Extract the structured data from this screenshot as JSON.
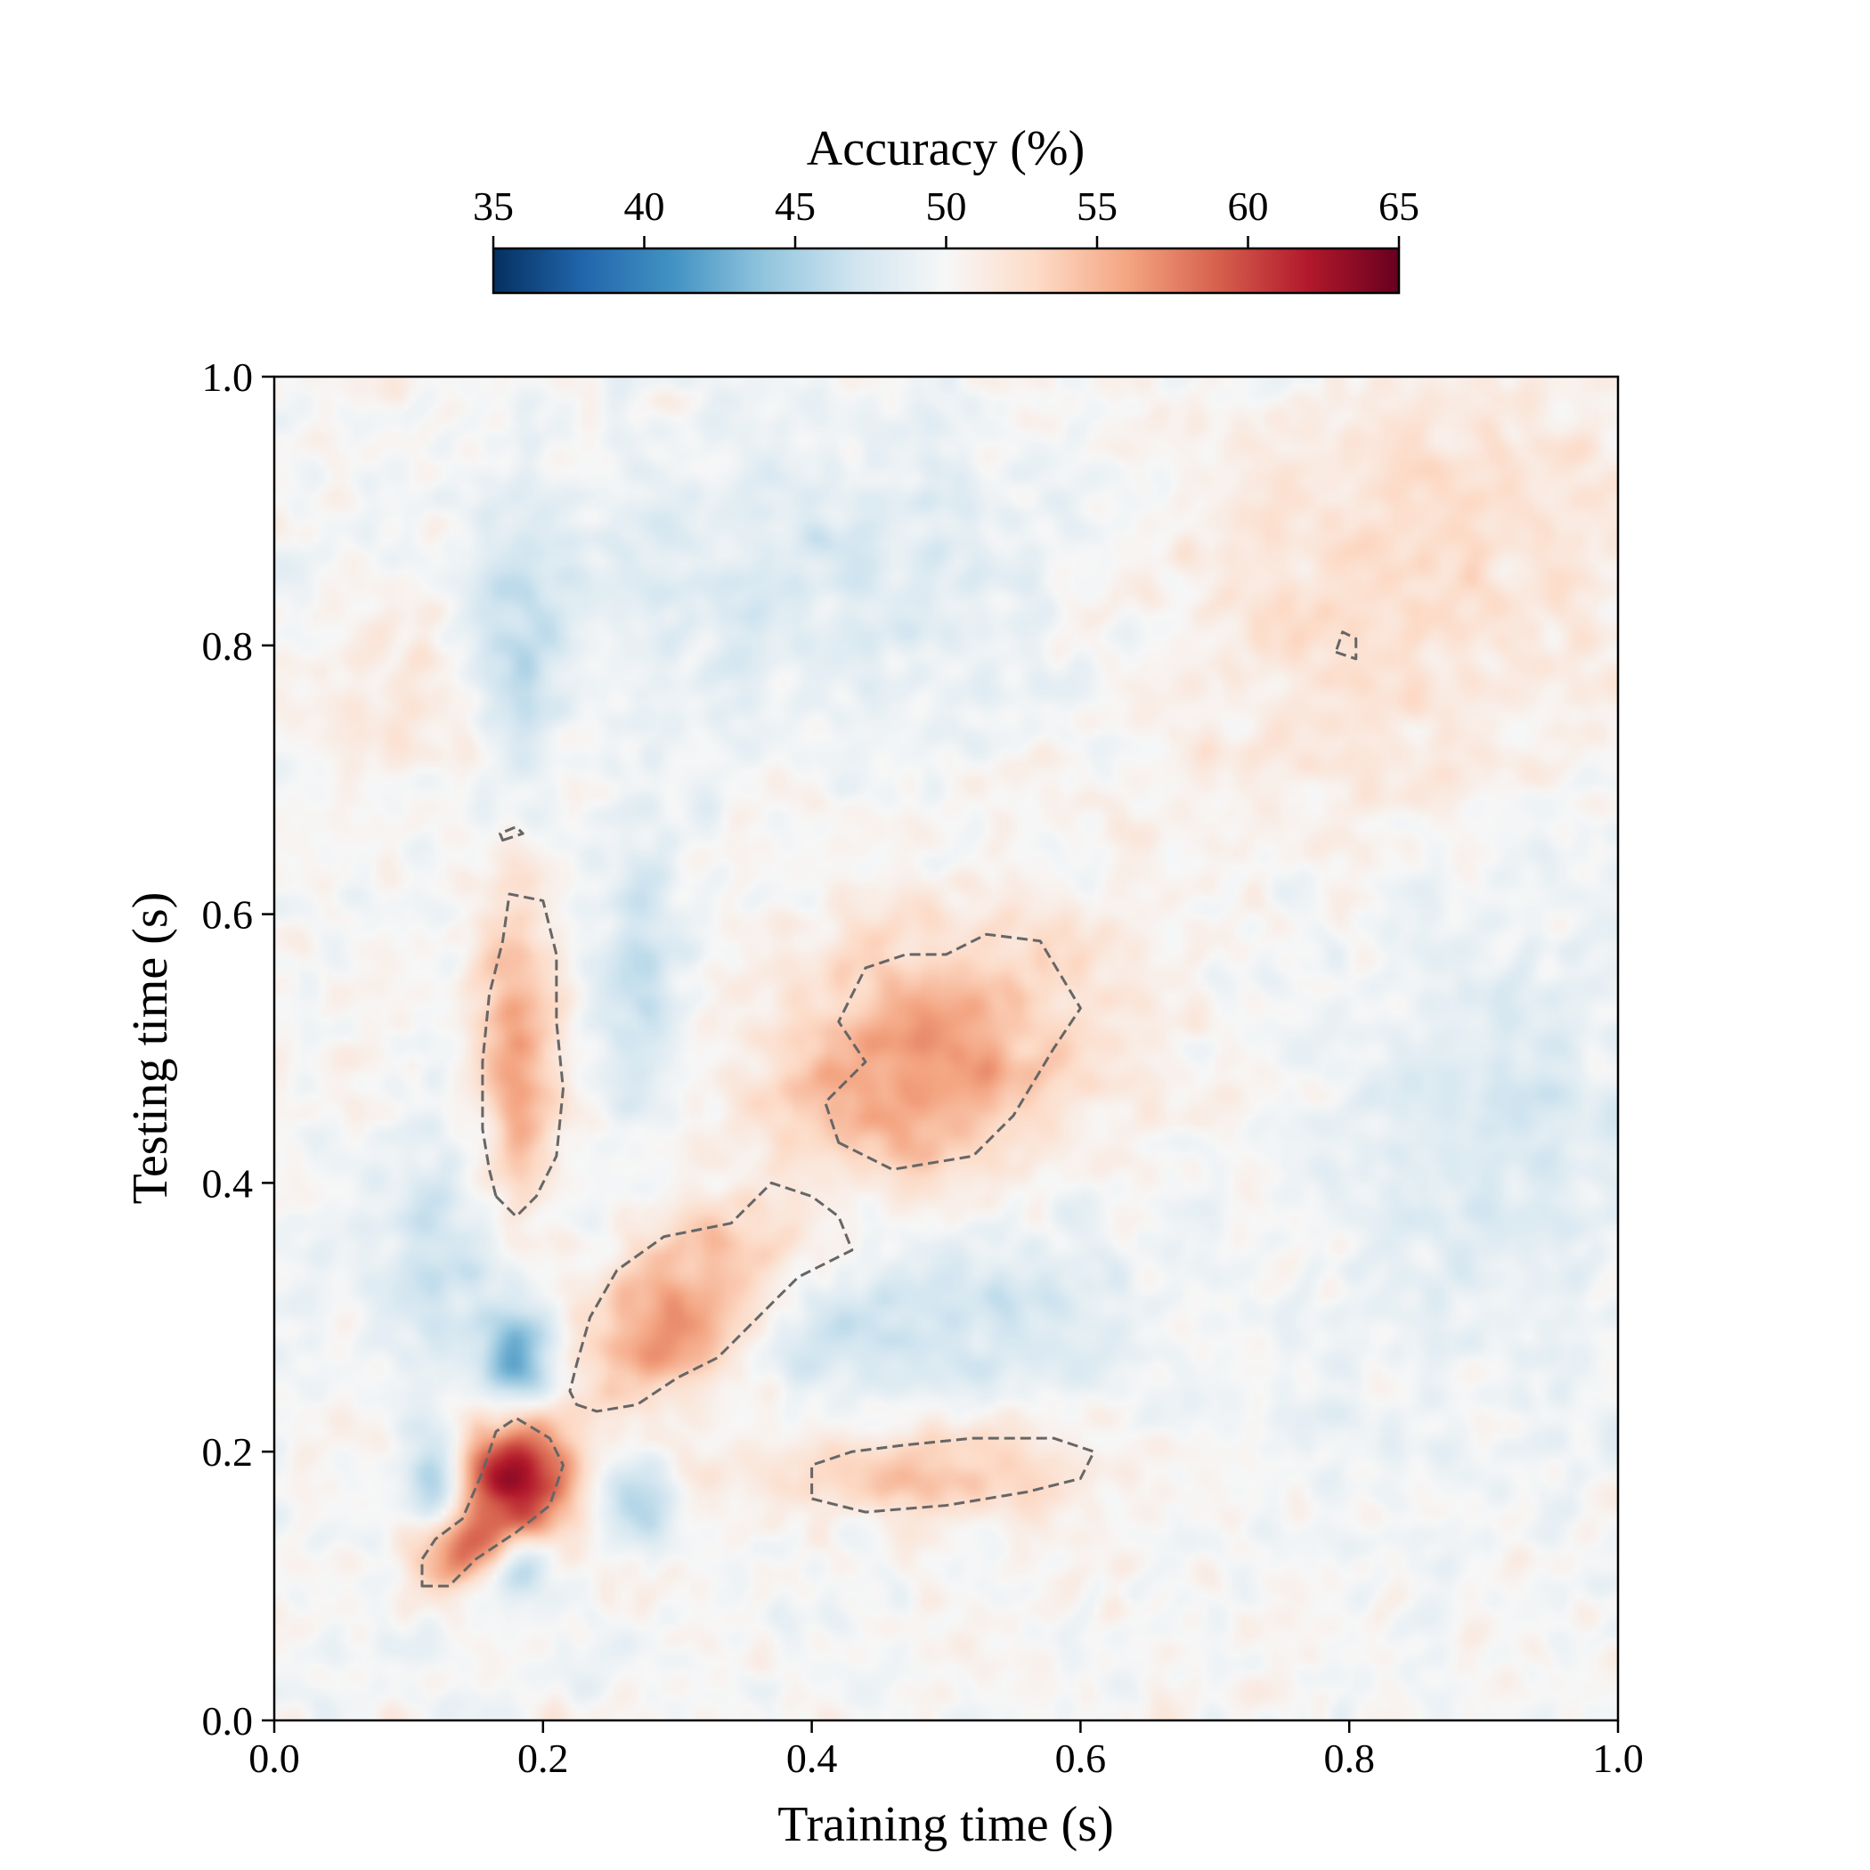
{
  "chart_data": {
    "type": "heatmap",
    "title": "",
    "xlabel": "Training time (s)",
    "ylabel": "Testing time (s)",
    "xlim": [
      0.0,
      1.0
    ],
    "ylim": [
      0.0,
      1.0
    ],
    "xticks": [
      0.0,
      0.2,
      0.4,
      0.6,
      0.8,
      1.0
    ],
    "xtick_labels": [
      "0.0",
      "0.2",
      "0.4",
      "0.6",
      "0.8",
      "1.0"
    ],
    "yticks": [
      0.0,
      0.2,
      0.4,
      0.6,
      0.8,
      1.0
    ],
    "ytick_labels": [
      "0.0",
      "0.2",
      "0.4",
      "0.6",
      "0.8",
      "1.0"
    ],
    "grid": false,
    "colorbar": {
      "label": "Accuracy (%)",
      "orientation": "horizontal",
      "placement": "top",
      "range": [
        35,
        65
      ],
      "ticks": [
        35,
        40,
        45,
        50,
        55,
        60,
        65
      ],
      "tick_labels": [
        "35",
        "40",
        "45",
        "50",
        "55",
        "60",
        "65"
      ],
      "colormap": "RdBu_r",
      "colors": [
        "#053061",
        "#2166ac",
        "#4393c3",
        "#92c5de",
        "#d1e5f0",
        "#f7f7f7",
        "#fddbc7",
        "#f4a582",
        "#d6604d",
        "#b2182b",
        "#67001f"
      ]
    },
    "baseline_accuracy": 50,
    "features": [
      {
        "kind": "peak",
        "x": 0.18,
        "y": 0.18,
        "value": 63.5,
        "sx": 0.03,
        "sy": 0.032
      },
      {
        "kind": "peak",
        "x": 0.14,
        "y": 0.125,
        "value": 57.0,
        "sx": 0.025,
        "sy": 0.02
      },
      {
        "kind": "peak",
        "x": 0.285,
        "y": 0.285,
        "value": 57.5,
        "sx": 0.04,
        "sy": 0.035
      },
      {
        "kind": "peak",
        "x": 0.34,
        "y": 0.34,
        "value": 55.0,
        "sx": 0.04,
        "sy": 0.035
      },
      {
        "kind": "peak",
        "x": 0.18,
        "y": 0.5,
        "value": 56.5,
        "sx": 0.02,
        "sy": 0.085
      },
      {
        "kind": "peak",
        "x": 0.46,
        "y": 0.47,
        "value": 54.5,
        "sx": 0.07,
        "sy": 0.06
      },
      {
        "kind": "peak",
        "x": 0.52,
        "y": 0.52,
        "value": 53.5,
        "sx": 0.08,
        "sy": 0.06
      },
      {
        "kind": "peak",
        "x": 0.48,
        "y": 0.185,
        "value": 54.5,
        "sx": 0.09,
        "sy": 0.025
      },
      {
        "kind": "peak",
        "x": 0.8,
        "y": 0.8,
        "value": 52.0,
        "sx": 0.12,
        "sy": 0.12
      },
      {
        "kind": "peak",
        "x": 0.9,
        "y": 0.9,
        "value": 51.5,
        "sx": 0.08,
        "sy": 0.08
      },
      {
        "kind": "peak",
        "x": 0.1,
        "y": 0.75,
        "value": 52.0,
        "sx": 0.04,
        "sy": 0.05
      },
      {
        "kind": "trough",
        "x": 0.18,
        "y": 0.27,
        "value": 42.5,
        "sx": 0.018,
        "sy": 0.028
      },
      {
        "kind": "trough",
        "x": 0.12,
        "y": 0.18,
        "value": 43.5,
        "sx": 0.015,
        "sy": 0.025
      },
      {
        "kind": "trough",
        "x": 0.18,
        "y": 0.115,
        "value": 44.0,
        "sx": 0.018,
        "sy": 0.015
      },
      {
        "kind": "trough",
        "x": 0.27,
        "y": 0.165,
        "value": 46.0,
        "sx": 0.02,
        "sy": 0.025
      },
      {
        "kind": "trough",
        "x": 0.27,
        "y": 0.55,
        "value": 46.5,
        "sx": 0.025,
        "sy": 0.07
      },
      {
        "kind": "trough",
        "x": 0.18,
        "y": 0.79,
        "value": 46.5,
        "sx": 0.025,
        "sy": 0.07
      },
      {
        "kind": "trough",
        "x": 0.47,
        "y": 0.3,
        "value": 47.0,
        "sx": 0.12,
        "sy": 0.05
      },
      {
        "kind": "trough",
        "x": 0.12,
        "y": 0.34,
        "value": 47.0,
        "sx": 0.04,
        "sy": 0.06
      },
      {
        "kind": "trough",
        "x": 0.9,
        "y": 0.45,
        "value": 48.0,
        "sx": 0.08,
        "sy": 0.15
      },
      {
        "kind": "trough",
        "x": 0.4,
        "y": 0.85,
        "value": 48.0,
        "sx": 0.15,
        "sy": 0.08
      }
    ],
    "significance_contours": [
      {
        "style": "dashed",
        "color": "#666666",
        "points": [
          [
            0.11,
            0.1
          ],
          [
            0.13,
            0.1
          ],
          [
            0.15,
            0.12
          ],
          [
            0.18,
            0.14
          ],
          [
            0.205,
            0.16
          ],
          [
            0.215,
            0.19
          ],
          [
            0.205,
            0.21
          ],
          [
            0.18,
            0.225
          ],
          [
            0.165,
            0.215
          ],
          [
            0.155,
            0.185
          ],
          [
            0.14,
            0.15
          ],
          [
            0.12,
            0.135
          ],
          [
            0.11,
            0.12
          ]
        ]
      },
      {
        "style": "dashed",
        "color": "#666666",
        "points": [
          [
            0.225,
            0.235
          ],
          [
            0.24,
            0.23
          ],
          [
            0.27,
            0.235
          ],
          [
            0.3,
            0.255
          ],
          [
            0.33,
            0.27
          ],
          [
            0.36,
            0.3
          ],
          [
            0.39,
            0.33
          ],
          [
            0.43,
            0.35
          ],
          [
            0.42,
            0.375
          ],
          [
            0.4,
            0.39
          ],
          [
            0.37,
            0.4
          ],
          [
            0.34,
            0.37
          ],
          [
            0.29,
            0.36
          ],
          [
            0.255,
            0.335
          ],
          [
            0.235,
            0.3
          ],
          [
            0.225,
            0.265
          ],
          [
            0.22,
            0.245
          ]
        ]
      },
      {
        "style": "dashed",
        "color": "#666666",
        "points": [
          [
            0.165,
            0.39
          ],
          [
            0.18,
            0.375
          ],
          [
            0.195,
            0.39
          ],
          [
            0.21,
            0.42
          ],
          [
            0.215,
            0.47
          ],
          [
            0.21,
            0.52
          ],
          [
            0.21,
            0.57
          ],
          [
            0.2,
            0.61
          ],
          [
            0.175,
            0.615
          ],
          [
            0.17,
            0.58
          ],
          [
            0.16,
            0.54
          ],
          [
            0.155,
            0.49
          ],
          [
            0.155,
            0.44
          ],
          [
            0.16,
            0.41
          ]
        ]
      },
      {
        "style": "dashed",
        "color": "#666666",
        "points": [
          [
            0.4,
            0.165
          ],
          [
            0.44,
            0.155
          ],
          [
            0.5,
            0.16
          ],
          [
            0.56,
            0.17
          ],
          [
            0.6,
            0.18
          ],
          [
            0.61,
            0.2
          ],
          [
            0.58,
            0.21
          ],
          [
            0.52,
            0.21
          ],
          [
            0.47,
            0.205
          ],
          [
            0.43,
            0.2
          ],
          [
            0.4,
            0.19
          ]
        ]
      },
      {
        "style": "dashed",
        "color": "#666666",
        "points": [
          [
            0.42,
            0.43
          ],
          [
            0.46,
            0.41
          ],
          [
            0.52,
            0.42
          ],
          [
            0.55,
            0.45
          ],
          [
            0.58,
            0.5
          ],
          [
            0.6,
            0.53
          ],
          [
            0.57,
            0.58
          ],
          [
            0.53,
            0.585
          ],
          [
            0.5,
            0.57
          ],
          [
            0.47,
            0.57
          ],
          [
            0.44,
            0.56
          ],
          [
            0.42,
            0.52
          ],
          [
            0.44,
            0.49
          ],
          [
            0.41,
            0.46
          ]
        ]
      },
      {
        "style": "dashed",
        "color": "#666666",
        "points": [
          [
            0.79,
            0.795
          ],
          [
            0.805,
            0.79
          ],
          [
            0.805,
            0.805
          ],
          [
            0.795,
            0.81
          ]
        ]
      },
      {
        "style": "dashed",
        "color": "#666666",
        "points": [
          [
            0.17,
            0.655
          ],
          [
            0.185,
            0.66
          ],
          [
            0.18,
            0.665
          ],
          [
            0.168,
            0.66
          ]
        ]
      }
    ]
  }
}
